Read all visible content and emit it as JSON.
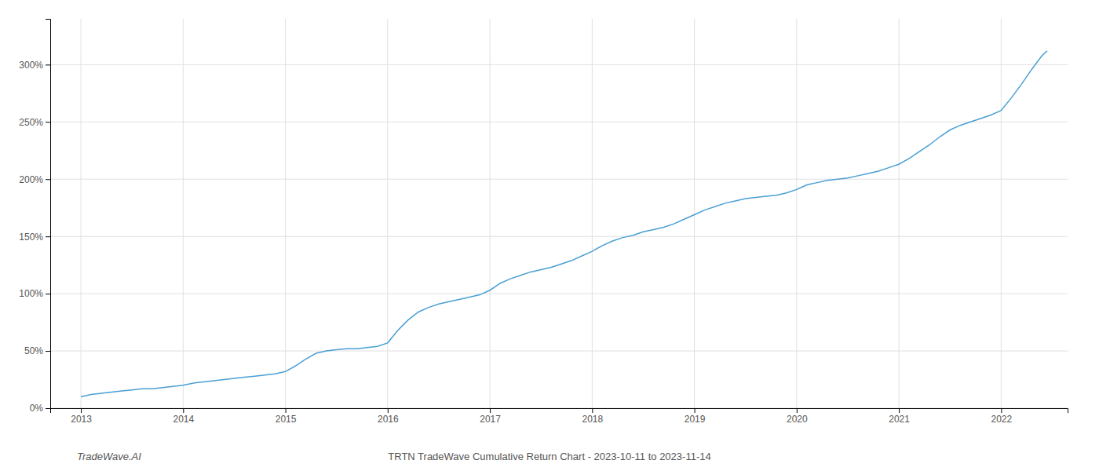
{
  "chart_data": {
    "type": "line",
    "title": "TRTN TradeWave Cumulative Return Chart - 2023-10-11 to 2023-11-14",
    "annotations": [
      "TradeWave.AI"
    ],
    "color": "#4a9fd4",
    "grid": true,
    "x": [
      2013.0,
      2013.1,
      2013.2,
      2013.3,
      2013.4,
      2013.5,
      2013.6,
      2013.7,
      2013.8,
      2013.9,
      2014.0,
      2014.1,
      2014.2,
      2014.3,
      2014.4,
      2014.5,
      2014.6,
      2014.7,
      2014.8,
      2014.9,
      2015.0,
      2015.1,
      2015.2,
      2015.3,
      2015.4,
      2015.5,
      2015.6,
      2015.7,
      2015.8,
      2015.9,
      2016.0,
      2016.1,
      2016.2,
      2016.3,
      2016.4,
      2016.5,
      2016.6,
      2016.7,
      2016.8,
      2016.9,
      2017.0,
      2017.1,
      2017.2,
      2017.3,
      2017.4,
      2017.5,
      2017.6,
      2017.7,
      2017.8,
      2017.9,
      2018.0,
      2018.1,
      2018.2,
      2018.3,
      2018.4,
      2018.5,
      2018.6,
      2018.7,
      2018.8,
      2018.9,
      2019.0,
      2019.1,
      2019.2,
      2019.3,
      2019.4,
      2019.5,
      2019.6,
      2019.7,
      2019.8,
      2019.9,
      2020.0,
      2020.1,
      2020.2,
      2020.3,
      2020.4,
      2020.5,
      2020.6,
      2020.7,
      2020.8,
      2020.9,
      2021.0,
      2021.1,
      2021.2,
      2021.3,
      2021.4,
      2021.5,
      2021.6,
      2021.7,
      2021.8,
      2021.9,
      2022.0,
      2022.1,
      2022.2,
      2022.3,
      2022.4,
      2022.45
    ],
    "values": [
      10,
      12,
      13,
      14,
      15,
      16,
      17,
      17,
      18,
      19,
      20,
      22,
      23,
      24,
      25,
      26,
      27,
      28,
      29,
      30,
      32,
      37,
      43,
      48,
      50,
      51,
      52,
      52,
      53,
      54,
      57,
      68,
      77,
      84,
      88,
      91,
      93,
      95,
      97,
      99,
      103,
      109,
      113,
      116,
      119,
      121,
      123,
      126,
      129,
      133,
      137,
      142,
      146,
      149,
      151,
      154,
      156,
      158,
      161,
      165,
      169,
      173,
      176,
      179,
      181,
      183,
      184,
      185,
      186,
      188,
      191,
      195,
      197,
      199,
      200,
      201,
      203,
      205,
      207,
      210,
      213,
      218,
      224,
      230,
      237,
      243,
      247,
      250,
      253,
      256,
      260,
      271,
      283,
      296,
      308,
      312
    ],
    "xlim": [
      2012.7,
      2022.65
    ],
    "xticks": [
      2013,
      2014,
      2015,
      2016,
      2017,
      2018,
      2019,
      2020,
      2021,
      2022
    ],
    "ylim": [
      0,
      340
    ],
    "yticks": [
      {
        "value": 0,
        "label": "0%"
      },
      {
        "value": 50,
        "label": "50%"
      },
      {
        "value": 100,
        "label": "100%"
      },
      {
        "value": 150,
        "label": "150%"
      },
      {
        "value": 200,
        "label": "200%"
      },
      {
        "value": 250,
        "label": "250%"
      },
      {
        "value": 300,
        "label": "300%"
      }
    ]
  }
}
